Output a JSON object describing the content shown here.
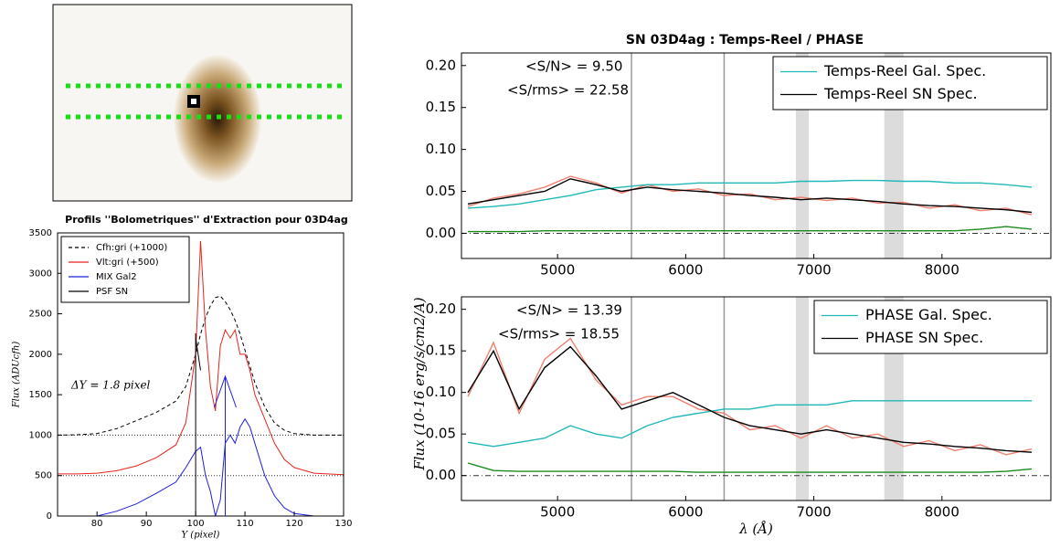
{
  "chart_data": [
    {
      "type": "line",
      "title": "Profils ''Bolometriques'' d'Extraction pour 03D4ag",
      "xlabel": "Y (pixel)",
      "ylabel": "Flux (ADUcfh)",
      "annotations": [
        "ΔY = 1.8 pixel"
      ],
      "legend": "upper left",
      "hlines": [
        500,
        1000
      ],
      "xlim": [
        72,
        130
      ],
      "xticks": [
        80,
        90,
        100,
        110,
        120,
        130
      ],
      "ylim": [
        0,
        3500
      ],
      "yticks": [
        0,
        500,
        1000,
        1500,
        2000,
        2500,
        3000,
        3500
      ],
      "x": [
        72,
        76,
        80,
        84,
        88,
        92,
        96,
        98,
        100,
        101,
        102,
        103,
        104,
        105,
        106,
        107,
        108,
        109,
        110,
        111,
        112,
        114,
        116,
        118,
        120,
        124,
        130
      ],
      "series": [
        {
          "name": "Cfh:gri (+1000)",
          "color": "#000000",
          "style": "dashed",
          "values": [
            1000,
            1005,
            1020,
            1080,
            1180,
            1280,
            1420,
            1600,
            2000,
            2250,
            2450,
            2600,
            2700,
            2720,
            2650,
            2550,
            2420,
            2250,
            2050,
            1850,
            1650,
            1350,
            1150,
            1060,
            1020,
            1000,
            1000
          ]
        },
        {
          "name": "Vlt:gri (+500)",
          "color": "#e8231d",
          "style": "solid",
          "values": [
            520,
            520,
            530,
            560,
            620,
            720,
            880,
            1150,
            2000,
            3400,
            2300,
            1600,
            1300,
            2100,
            2300,
            2200,
            2300,
            2000,
            2000,
            1800,
            1500,
            1200,
            900,
            700,
            600,
            530,
            510
          ]
        },
        {
          "name": "MIX Gal2",
          "color": "#1f1fe0",
          "style": "solid",
          "values": [
            null,
            null,
            0,
            60,
            150,
            280,
            420,
            600,
            800,
            850,
            500,
            300,
            0,
            200,
            900,
            1000,
            900,
            1100,
            1200,
            1100,
            900,
            500,
            250,
            100,
            30,
            0,
            null
          ]
        },
        {
          "name": "PSF SN",
          "color": "#000000",
          "style": "solid",
          "values": [
            null,
            null,
            null,
            null,
            null,
            null,
            null,
            null,
            2200,
            1800,
            null,
            null,
            null,
            null,
            null,
            null,
            null,
            null,
            null,
            null,
            null,
            null,
            null,
            null,
            null,
            null,
            null
          ]
        }
      ]
    },
    {
      "type": "line",
      "title": "SN 03D4ag : Temps-Reel / PHASE",
      "annotations": [
        "<S/N> = 9.50",
        "<S/rms> = 22.58"
      ],
      "legend": "upper right",
      "vlines": [
        5577,
        6300
      ],
      "bands": [
        [
          6860,
          6960
        ],
        [
          7550,
          7700
        ]
      ],
      "hlines": [
        0
      ],
      "xlim": [
        4250,
        8850
      ],
      "xticks": [
        5000,
        6000,
        7000,
        8000
      ],
      "ylim": [
        -0.03,
        0.215
      ],
      "yticks": [
        {
          "value": 0,
          "label": "0.00"
        },
        {
          "value": 0.05,
          "label": "0.05"
        },
        {
          "value": 0.1,
          "label": "0.10"
        },
        {
          "value": 0.15,
          "label": "0.15"
        },
        {
          "value": 0.2,
          "label": "0.20"
        }
      ],
      "x": [
        4300,
        4500,
        4700,
        4900,
        5100,
        5300,
        5500,
        5700,
        5900,
        6100,
        6300,
        6500,
        6700,
        6900,
        7100,
        7300,
        7500,
        7700,
        7900,
        8100,
        8300,
        8500,
        8700
      ],
      "series": [
        {
          "color": "#f08070",
          "style": "solid",
          "values": [
            0.032,
            0.042,
            0.047,
            0.055,
            0.068,
            0.06,
            0.048,
            0.058,
            0.05,
            0.053,
            0.045,
            0.047,
            0.04,
            0.043,
            0.039,
            0.042,
            0.036,
            0.037,
            0.03,
            0.034,
            0.027,
            0.03,
            0.022
          ]
        },
        {
          "name": "Temps-Reel Gal. Spec.",
          "color": "#20b8b8",
          "style": "solid",
          "values": [
            0.03,
            0.032,
            0.035,
            0.04,
            0.045,
            0.052,
            0.055,
            0.058,
            0.058,
            0.06,
            0.06,
            0.06,
            0.06,
            0.062,
            0.062,
            0.063,
            0.063,
            0.062,
            0.062,
            0.06,
            0.06,
            0.058,
            0.055
          ]
        },
        {
          "name": "Temps-Reel SN Spec.",
          "color": "#000000",
          "style": "solid",
          "values": [
            0.035,
            0.04,
            0.045,
            0.05,
            0.065,
            0.058,
            0.05,
            0.055,
            0.052,
            0.05,
            0.048,
            0.045,
            0.043,
            0.04,
            0.042,
            0.04,
            0.038,
            0.035,
            0.033,
            0.032,
            0.03,
            0.028,
            0.025
          ]
        },
        {
          "color": "#1a8a1a",
          "style": "solid",
          "values": [
            0.002,
            0.002,
            0.002,
            0.003,
            0.003,
            0.003,
            0.003,
            0.003,
            0.003,
            0.003,
            0.003,
            0.003,
            0.003,
            0.003,
            0.003,
            0.003,
            0.003,
            0.003,
            0.003,
            0.003,
            0.005,
            0.008,
            0.005
          ]
        }
      ]
    },
    {
      "type": "line",
      "xlabel": "λ (Å)",
      "ylabel": "Flux (10-16 erg/s/cm2/A)",
      "annotations": [
        "<S/N> = 13.39",
        "<S/rms> = 18.55"
      ],
      "legend": "upper right",
      "vlines": [
        5577,
        6300
      ],
      "bands": [
        [
          6860,
          6960
        ],
        [
          7550,
          7700
        ]
      ],
      "hlines": [
        0
      ],
      "xlim": [
        4250,
        8850
      ],
      "xticks": [
        5000,
        6000,
        7000,
        8000
      ],
      "ylim": [
        -0.03,
        0.215
      ],
      "yticks": [
        {
          "value": 0,
          "label": "0.00"
        },
        {
          "value": 0.05,
          "label": "0.05"
        },
        {
          "value": 0.1,
          "label": "0.10"
        },
        {
          "value": 0.15,
          "label": "0.15"
        },
        {
          "value": 0.2,
          "label": "0.20"
        }
      ],
      "x": [
        4300,
        4500,
        4700,
        4900,
        5100,
        5300,
        5500,
        5700,
        5900,
        6100,
        6300,
        6500,
        6700,
        6900,
        7100,
        7300,
        7500,
        7700,
        7900,
        8100,
        8300,
        8500,
        8700
      ],
      "series": [
        {
          "color": "#f08070",
          "style": "solid",
          "values": [
            0.095,
            0.16,
            0.075,
            0.14,
            0.165,
            0.115,
            0.085,
            0.095,
            0.095,
            0.08,
            0.075,
            0.055,
            0.06,
            0.045,
            0.06,
            0.045,
            0.05,
            0.035,
            0.042,
            0.03,
            0.037,
            0.025,
            0.032
          ]
        },
        {
          "name": "PHASE Gal. Spec.",
          "color": "#20b8b8",
          "style": "solid",
          "values": [
            0.04,
            0.035,
            0.04,
            0.045,
            0.06,
            0.05,
            0.045,
            0.06,
            0.07,
            0.075,
            0.08,
            0.08,
            0.085,
            0.085,
            0.085,
            0.09,
            0.09,
            0.09,
            0.09,
            0.09,
            0.09,
            0.09,
            0.09
          ]
        },
        {
          "name": "PHASE SN Spec.",
          "color": "#000000",
          "style": "solid",
          "values": [
            0.1,
            0.15,
            0.08,
            0.13,
            0.155,
            0.12,
            0.08,
            0.09,
            0.1,
            0.085,
            0.07,
            0.06,
            0.055,
            0.05,
            0.055,
            0.05,
            0.045,
            0.04,
            0.038,
            0.035,
            0.033,
            0.03,
            0.028
          ]
        },
        {
          "color": "#1a8a1a",
          "style": "solid",
          "values": [
            0.015,
            0.006,
            0.005,
            0.005,
            0.005,
            0.005,
            0.005,
            0.005,
            0.005,
            0.004,
            0.004,
            0.004,
            0.004,
            0.004,
            0.004,
            0.004,
            0.004,
            0.004,
            0.004,
            0.004,
            0.004,
            0.005,
            0.008
          ]
        }
      ]
    }
  ]
}
